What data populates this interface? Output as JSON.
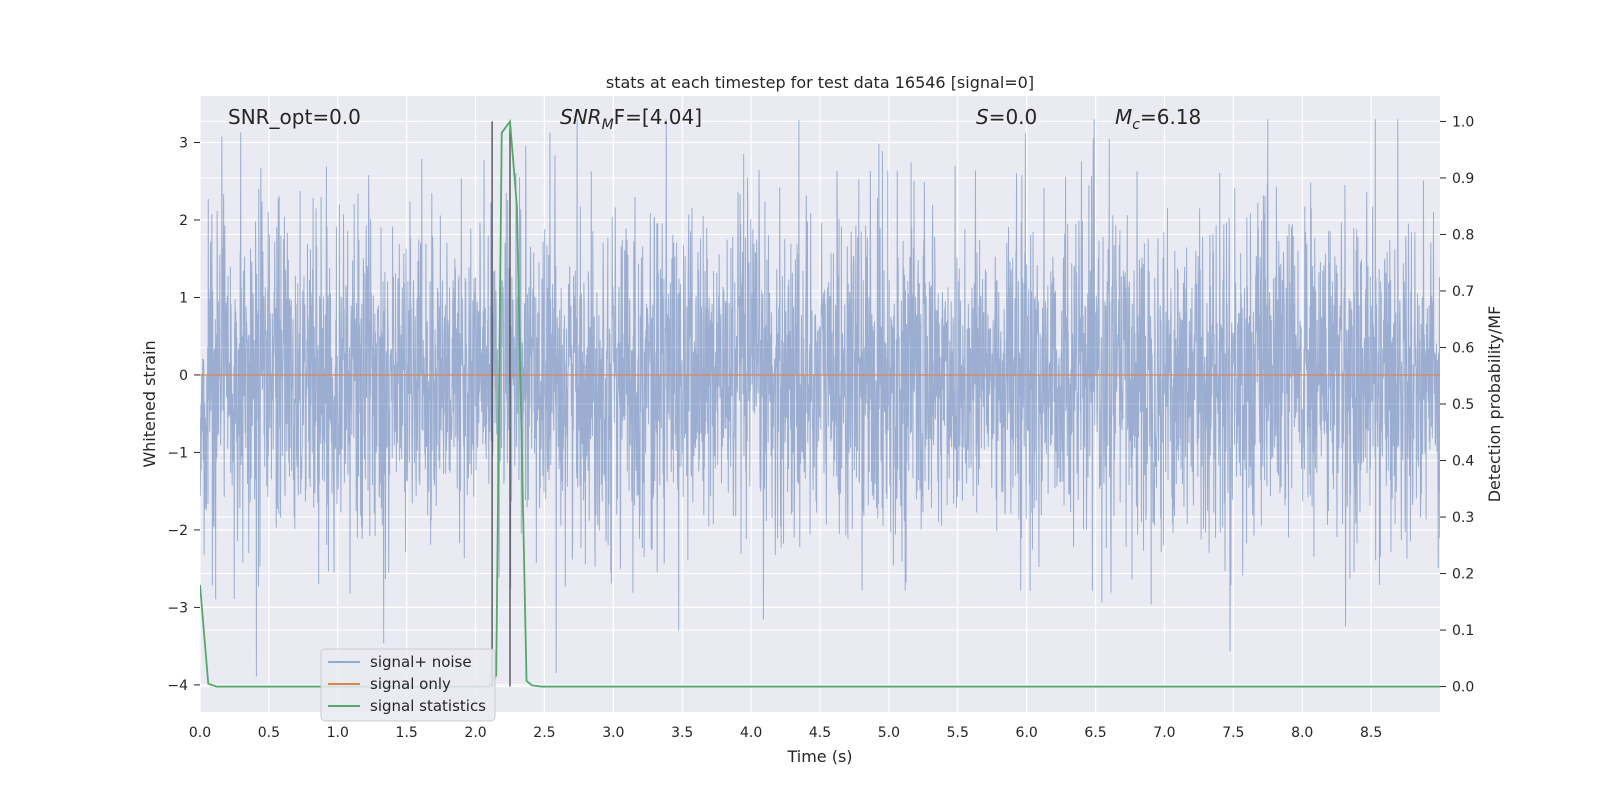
{
  "chart_data": {
    "type": "line",
    "title": "stats at each timestep for test data 16546 [signal=0]",
    "xlabel": "Time (s)",
    "ylabel_left": "Whitened strain",
    "ylabel_right": "Detection probability/MF",
    "xlim": [
      0.0,
      9.0
    ],
    "ylim_left": [
      -4.35,
      3.6
    ],
    "ylim_right": [
      -0.045,
      1.045
    ],
    "x_ticks": [
      "0.0",
      "0.5",
      "1.0",
      "1.5",
      "2.0",
      "2.5",
      "3.0",
      "3.5",
      "4.0",
      "4.5",
      "5.0",
      "5.5",
      "6.0",
      "6.5",
      "7.0",
      "7.5",
      "8.0",
      "8.5"
    ],
    "y_ticks_left": [
      "3",
      "2",
      "1",
      "0",
      "−1",
      "−2",
      "−3",
      "−4"
    ],
    "y_ticks_right": [
      "1.0",
      "0.9",
      "0.8",
      "0.7",
      "0.6",
      "0.5",
      "0.4",
      "0.3",
      "0.2",
      "0.1",
      "0.0"
    ],
    "grid": true,
    "legend_position": "lower-left",
    "annotations": {
      "snr_opt": "SNR_opt=0.0",
      "snr_mf_sym": "SNR",
      "snr_mf_sub": "M",
      "snr_mf_rest": "F=[4.04]",
      "s_sym": "S",
      "s_rest": "=0.0",
      "mc_sym": "M",
      "mc_sub": "c",
      "mc_rest": "=6.18"
    },
    "vertical_lines_x": [
      2.12,
      2.25
    ],
    "series": [
      {
        "name": "signal+ noise",
        "color": "#4c72b0",
        "axis": "left",
        "style": "dense whitened-noise trace, amplitude roughly within ±3.3"
      },
      {
        "name": "signal only",
        "color": "#dd8452",
        "axis": "left",
        "x": [
          0.0,
          9.0
        ],
        "y": [
          0.0,
          0.0
        ]
      },
      {
        "name": "signal statistics",
        "color": "#55a868",
        "axis": "right",
        "x": [
          0.0,
          0.06,
          0.12,
          0.19,
          2.0,
          2.1,
          2.15,
          2.19,
          2.25,
          2.3,
          2.37,
          2.41,
          2.48,
          9.0
        ],
        "y": [
          0.18,
          0.005,
          0.0,
          0.0,
          0.0,
          0.0,
          0.02,
          0.98,
          1.0,
          0.85,
          0.01,
          0.002,
          0.0,
          0.0
        ]
      }
    ]
  }
}
